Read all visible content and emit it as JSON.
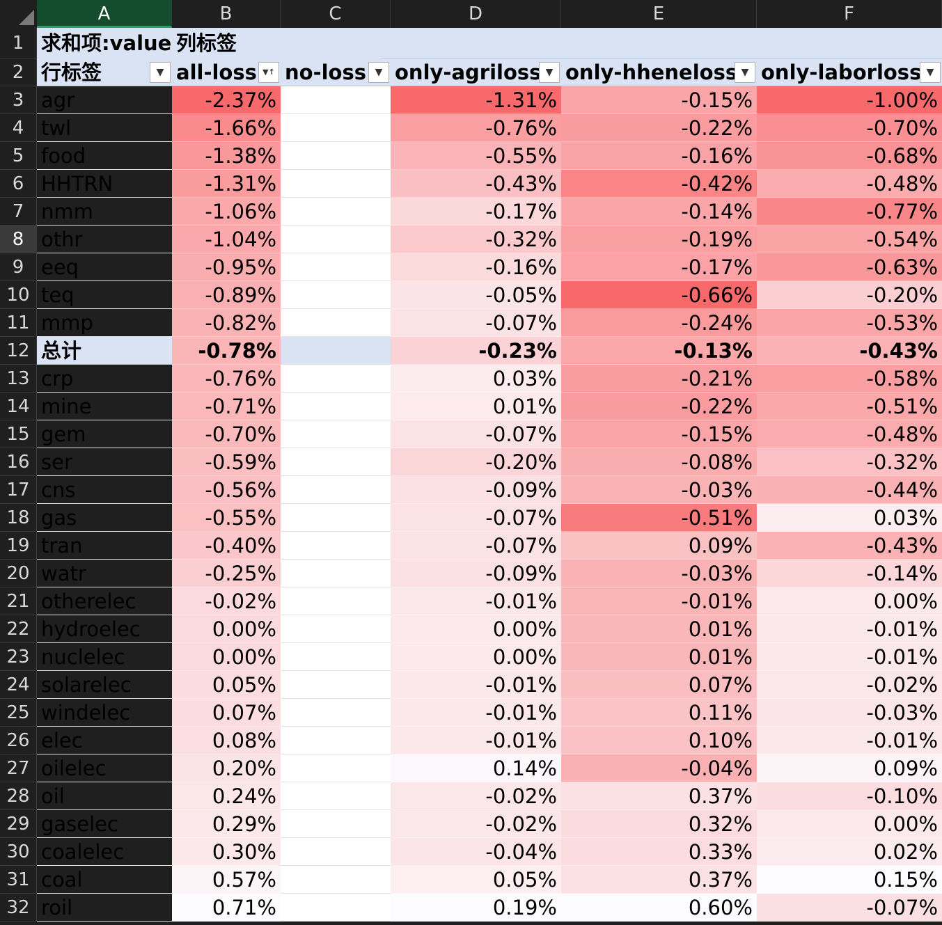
{
  "app": {
    "name": "Excel pivot table"
  },
  "column_headers": [
    "A",
    "B",
    "C",
    "D",
    "E",
    "F"
  ],
  "selected_column": "A",
  "selected_row": "8",
  "pivot": {
    "value_label": "求和项:value",
    "col_label": "列标签",
    "row_label": "行标签",
    "columns": [
      "all-loss",
      "no-loss",
      "only-agriloss",
      "only-hheneloss",
      "only-laborloss"
    ],
    "sort_indicator_column": "all-loss",
    "total_label": "总计"
  },
  "colors": {
    "header_fill": "#dae3f3",
    "scale_negative": "#f8696b",
    "scale_positive": "#fcfcff",
    "selected_column": "#21a366"
  },
  "rows": [
    {
      "num": "3",
      "name": "agr",
      "values": [
        "-2.37%",
        "",
        "-1.31%",
        "-0.15%",
        "-1.00%"
      ]
    },
    {
      "num": "4",
      "name": "twl",
      "values": [
        "-1.66%",
        "",
        "-0.76%",
        "-0.22%",
        "-0.70%"
      ]
    },
    {
      "num": "5",
      "name": "food",
      "values": [
        "-1.38%",
        "",
        "-0.55%",
        "-0.16%",
        "-0.68%"
      ]
    },
    {
      "num": "6",
      "name": "HHTRN",
      "values": [
        "-1.31%",
        "",
        "-0.43%",
        "-0.42%",
        "-0.48%"
      ]
    },
    {
      "num": "7",
      "name": "nmm",
      "values": [
        "-1.06%",
        "",
        "-0.17%",
        "-0.14%",
        "-0.77%"
      ]
    },
    {
      "num": "8",
      "name": "othr",
      "values": [
        "-1.04%",
        "",
        "-0.32%",
        "-0.19%",
        "-0.54%"
      ]
    },
    {
      "num": "9",
      "name": "eeq",
      "values": [
        "-0.95%",
        "",
        "-0.16%",
        "-0.17%",
        "-0.63%"
      ]
    },
    {
      "num": "10",
      "name": "teq",
      "values": [
        "-0.89%",
        "",
        "-0.05%",
        "-0.66%",
        "-0.20%"
      ]
    },
    {
      "num": "11",
      "name": "mmp",
      "values": [
        "-0.82%",
        "",
        "-0.07%",
        "-0.24%",
        "-0.53%"
      ]
    },
    {
      "num": "12",
      "name": "总计",
      "values": [
        "-0.78%",
        "",
        "-0.23%",
        "-0.13%",
        "-0.43%"
      ],
      "total": true
    },
    {
      "num": "13",
      "name": "crp",
      "values": [
        "-0.76%",
        "",
        "0.03%",
        "-0.21%",
        "-0.58%"
      ]
    },
    {
      "num": "14",
      "name": "mine",
      "values": [
        "-0.71%",
        "",
        "0.01%",
        "-0.22%",
        "-0.51%"
      ]
    },
    {
      "num": "15",
      "name": "gem",
      "values": [
        "-0.70%",
        "",
        "-0.07%",
        "-0.15%",
        "-0.48%"
      ]
    },
    {
      "num": "16",
      "name": "ser",
      "values": [
        "-0.59%",
        "",
        "-0.20%",
        "-0.08%",
        "-0.32%"
      ]
    },
    {
      "num": "17",
      "name": "cns",
      "values": [
        "-0.56%",
        "",
        "-0.09%",
        "-0.03%",
        "-0.44%"
      ]
    },
    {
      "num": "18",
      "name": "gas",
      "values": [
        "-0.55%",
        "",
        "-0.07%",
        "-0.51%",
        "0.03%"
      ]
    },
    {
      "num": "19",
      "name": "tran",
      "values": [
        "-0.40%",
        "",
        "-0.07%",
        "0.09%",
        "-0.43%"
      ]
    },
    {
      "num": "20",
      "name": "watr",
      "values": [
        "-0.25%",
        "",
        "-0.09%",
        "-0.03%",
        "-0.14%"
      ]
    },
    {
      "num": "21",
      "name": "otherelec",
      "values": [
        "-0.02%",
        "",
        "-0.01%",
        "-0.01%",
        "0.00%"
      ]
    },
    {
      "num": "22",
      "name": "hydroelec",
      "values": [
        "0.00%",
        "",
        "0.00%",
        "0.01%",
        "-0.01%"
      ]
    },
    {
      "num": "23",
      "name": "nuclelec",
      "values": [
        "0.00%",
        "",
        "0.00%",
        "0.01%",
        "-0.01%"
      ]
    },
    {
      "num": "24",
      "name": "solarelec",
      "values": [
        "0.05%",
        "",
        "-0.01%",
        "0.07%",
        "-0.02%"
      ]
    },
    {
      "num": "25",
      "name": "windelec",
      "values": [
        "0.07%",
        "",
        "-0.01%",
        "0.11%",
        "-0.03%"
      ]
    },
    {
      "num": "26",
      "name": "elec",
      "values": [
        "0.08%",
        "",
        "-0.01%",
        "0.10%",
        "-0.01%"
      ]
    },
    {
      "num": "27",
      "name": "oilelec",
      "values": [
        "0.20%",
        "",
        "0.14%",
        "-0.04%",
        "0.09%"
      ]
    },
    {
      "num": "28",
      "name": "oil",
      "values": [
        "0.24%",
        "",
        "-0.02%",
        "0.37%",
        "-0.10%"
      ]
    },
    {
      "num": "29",
      "name": "gaselec",
      "values": [
        "0.29%",
        "",
        "-0.02%",
        "0.32%",
        "0.00%"
      ]
    },
    {
      "num": "30",
      "name": "coalelec",
      "values": [
        "0.30%",
        "",
        "-0.04%",
        "0.33%",
        "0.02%"
      ]
    },
    {
      "num": "31",
      "name": "coal",
      "values": [
        "0.57%",
        "",
        "0.05%",
        "0.37%",
        "0.15%"
      ]
    },
    {
      "num": "32",
      "name": "roil",
      "values": [
        "0.71%",
        "",
        "0.19%",
        "0.60%",
        "-0.07%"
      ]
    }
  ]
}
